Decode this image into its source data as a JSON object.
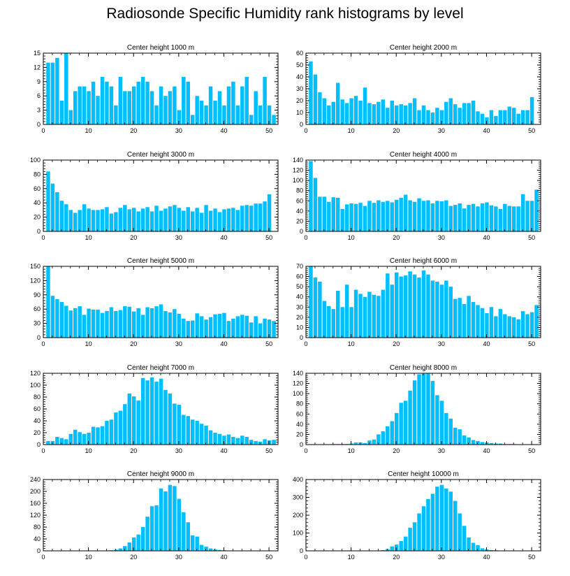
{
  "title": "Radiosonde Specific Humidity rank histograms by level",
  "bar_color": "#00bfff",
  "chart_data": [
    {
      "type": "bar",
      "title": "Center height 1000 m",
      "xlim": [
        0,
        52
      ],
      "ylim": [
        0,
        15
      ],
      "yticks": [
        0,
        3,
        6,
        9,
        12,
        15
      ],
      "xticks": [
        0,
        10,
        20,
        30,
        40,
        50
      ],
      "values": [
        13,
        13,
        14,
        5,
        15,
        3,
        7,
        8,
        8,
        7,
        9,
        6,
        10,
        9,
        8,
        4,
        10,
        7,
        7,
        8,
        9,
        10,
        9,
        7,
        4,
        8,
        6,
        7,
        8,
        3,
        10,
        9,
        2,
        6,
        5,
        4,
        8,
        5,
        7,
        4,
        8,
        9,
        4,
        8,
        10,
        2,
        7,
        4,
        10,
        4,
        2
      ]
    },
    {
      "type": "bar",
      "title": "Center height 2000 m",
      "xlim": [
        0,
        52
      ],
      "ylim": [
        0,
        60
      ],
      "yticks": [
        0,
        10,
        20,
        30,
        40,
        50,
        60
      ],
      "xticks": [
        0,
        10,
        20,
        30,
        40,
        50
      ],
      "values": [
        53,
        42,
        27,
        22,
        16,
        19,
        35,
        21,
        18,
        22,
        24,
        20,
        31,
        18,
        17,
        19,
        21,
        14,
        20,
        16,
        17,
        16,
        18,
        22,
        12,
        16,
        12,
        10,
        14,
        12,
        19,
        22,
        17,
        14,
        18,
        18,
        20,
        11,
        9,
        6,
        12,
        7,
        12,
        12,
        15,
        14,
        9,
        12,
        12,
        23,
        0
      ]
    },
    {
      "type": "bar",
      "title": "Center height 3000 m",
      "xlim": [
        0,
        52
      ],
      "ylim": [
        0,
        100
      ],
      "yticks": [
        0,
        20,
        40,
        60,
        80,
        100
      ],
      "xticks": [
        0,
        10,
        20,
        30,
        40,
        50
      ],
      "values": [
        84,
        67,
        55,
        43,
        38,
        30,
        26,
        30,
        38,
        32,
        30,
        30,
        31,
        34,
        25,
        27,
        33,
        37,
        31,
        33,
        28,
        32,
        34,
        28,
        36,
        29,
        32,
        35,
        37,
        33,
        29,
        34,
        28,
        33,
        26,
        37,
        29,
        32,
        27,
        31,
        32,
        33,
        30,
        36,
        37,
        36,
        39,
        39,
        42,
        52,
        0
      ]
    },
    {
      "type": "bar",
      "title": "Center height 4000 m",
      "xlim": [
        0,
        52
      ],
      "ylim": [
        0,
        140
      ],
      "yticks": [
        0,
        20,
        40,
        60,
        80,
        100,
        120,
        140
      ],
      "xticks": [
        0,
        10,
        20,
        30,
        40,
        50
      ],
      "values": [
        138,
        105,
        68,
        68,
        58,
        67,
        66,
        44,
        53,
        55,
        54,
        56,
        50,
        60,
        56,
        61,
        58,
        60,
        57,
        62,
        66,
        72,
        61,
        58,
        65,
        60,
        61,
        55,
        60,
        59,
        61,
        50,
        52,
        55,
        45,
        52,
        54,
        49,
        55,
        57,
        51,
        49,
        44,
        54,
        50,
        49,
        49,
        73,
        60,
        60,
        82
      ]
    },
    {
      "type": "bar",
      "title": "Center height 5000 m",
      "xlim": [
        0,
        52
      ],
      "ylim": [
        0,
        150
      ],
      "yticks": [
        0,
        30,
        60,
        90,
        120,
        150
      ],
      "xticks": [
        0,
        10,
        20,
        30,
        40,
        50
      ],
      "values": [
        150,
        88,
        81,
        75,
        67,
        57,
        62,
        66,
        48,
        61,
        59,
        59,
        52,
        56,
        64,
        56,
        58,
        66,
        65,
        55,
        62,
        48,
        64,
        62,
        66,
        70,
        56,
        53,
        60,
        50,
        40,
        35,
        36,
        51,
        45,
        38,
        43,
        49,
        50,
        52,
        35,
        40,
        45,
        48,
        46,
        32,
        45,
        30,
        40,
        38,
        35
      ]
    },
    {
      "type": "bar",
      "title": "Center height 6000 m",
      "xlim": [
        0,
        52
      ],
      "ylim": [
        0,
        70
      ],
      "yticks": [
        0,
        10,
        20,
        30,
        40,
        50,
        60,
        70
      ],
      "xticks": [
        0,
        10,
        20,
        30,
        40,
        50
      ],
      "values": [
        70,
        59,
        55,
        36,
        31,
        28,
        46,
        30,
        52,
        30,
        47,
        43,
        40,
        45,
        42,
        41,
        47,
        63,
        52,
        64,
        60,
        61,
        65,
        62,
        59,
        66,
        62,
        56,
        55,
        52,
        56,
        50,
        38,
        39,
        33,
        41,
        35,
        32,
        29,
        24,
        30,
        21,
        28,
        23,
        21,
        20,
        18,
        26,
        23,
        25,
        32
      ]
    },
    {
      "type": "bar",
      "title": "Center height 7000 m",
      "xlim": [
        0,
        52
      ],
      "ylim": [
        0,
        120
      ],
      "yticks": [
        0,
        20,
        40,
        60,
        80,
        100,
        120
      ],
      "xticks": [
        0,
        10,
        20,
        30,
        40,
        50
      ],
      "values": [
        6,
        6,
        13,
        11,
        9,
        18,
        25,
        21,
        18,
        20,
        30,
        29,
        31,
        40,
        42,
        54,
        57,
        68,
        86,
        81,
        74,
        112,
        108,
        113,
        106,
        111,
        92,
        86,
        69,
        67,
        50,
        48,
        42,
        40,
        35,
        32,
        24,
        20,
        18,
        15,
        17,
        13,
        11,
        15,
        13,
        8,
        6,
        5,
        9,
        7,
        8
      ]
    },
    {
      "type": "bar",
      "title": "Center height 8000 m",
      "xlim": [
        0,
        52
      ],
      "ylim": [
        0,
        140
      ],
      "yticks": [
        0,
        20,
        40,
        60,
        80,
        100,
        120,
        140
      ],
      "xticks": [
        0,
        10,
        20,
        30,
        40,
        50
      ],
      "values": [
        0,
        0,
        0,
        0,
        0,
        1,
        1,
        1,
        1,
        2,
        4,
        4,
        3,
        8,
        10,
        20,
        26,
        36,
        46,
        62,
        82,
        86,
        106,
        126,
        138,
        139,
        140,
        125,
        97,
        86,
        62,
        51,
        33,
        30,
        18,
        14,
        9,
        7,
        5,
        4,
        3,
        2,
        2,
        1,
        1,
        1,
        0,
        0,
        0,
        0,
        0
      ]
    },
    {
      "type": "bar",
      "title": "Center height 9000 m",
      "xlim": [
        0,
        52
      ],
      "ylim": [
        0,
        240
      ],
      "yticks": [
        0,
        40,
        80,
        120,
        160,
        200,
        240
      ],
      "xticks": [
        0,
        10,
        20,
        30,
        40,
        50
      ],
      "values": [
        0,
        0,
        0,
        0,
        0,
        0,
        0,
        0,
        0,
        0,
        0,
        0,
        0,
        0,
        2,
        4,
        8,
        16,
        28,
        45,
        55,
        80,
        115,
        150,
        153,
        210,
        200,
        222,
        218,
        175,
        130,
        96,
        52,
        48,
        20,
        14,
        8,
        5,
        3,
        2,
        1,
        1,
        0,
        0,
        0,
        0,
        0,
        0,
        0,
        0,
        0
      ]
    },
    {
      "type": "bar",
      "title": "Center height 10000 m",
      "xlim": [
        0,
        52
      ],
      "ylim": [
        0,
        400
      ],
      "yticks": [
        0,
        100,
        200,
        300,
        400
      ],
      "xticks": [
        0,
        10,
        20,
        30,
        40,
        50
      ],
      "values": [
        0,
        0,
        0,
        0,
        0,
        0,
        0,
        0,
        0,
        0,
        0,
        0,
        0,
        0,
        0,
        0,
        4,
        10,
        25,
        35,
        55,
        80,
        130,
        160,
        210,
        250,
        290,
        320,
        360,
        370,
        350,
        332,
        280,
        210,
        140,
        75,
        45,
        32,
        14,
        8,
        4,
        3,
        2,
        1,
        1,
        1,
        1,
        1,
        1,
        1,
        1
      ]
    }
  ]
}
